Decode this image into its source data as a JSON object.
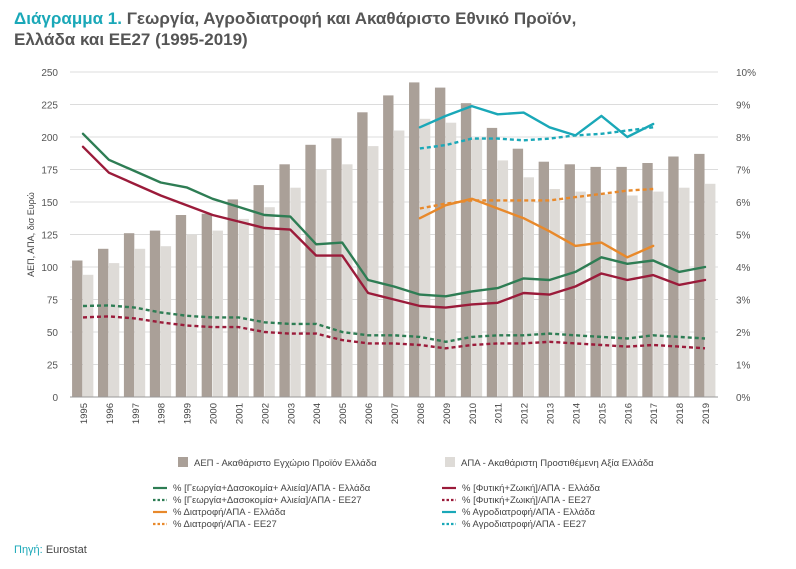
{
  "title_lead": "Διάγραμμα 1.",
  "title_line1": "Γεωργία, Αγροδιατροφή και Ακαθάριστο Εθνικό Προϊόν,",
  "title_line2": "Ελλάδα και ΕΕ27 (1995-2019)",
  "source_label": "Πηγή:",
  "source_value": "Eurostat",
  "colors": {
    "bar_gdp": "#aaa098",
    "bar_gva": "#dedbd7",
    "green": "#2e7d54",
    "crimson": "#9b1b3a",
    "orange": "#e8892b",
    "teal": "#1aa8b8",
    "grid": "#dcdcdc"
  },
  "chart_data": {
    "type": "bar",
    "years": [
      "1995",
      "1996",
      "1997",
      "1998",
      "1999",
      "2000",
      "2001",
      "2002",
      "2003",
      "2004",
      "2005",
      "2006",
      "2007",
      "2008",
      "2009",
      "2010",
      "2011",
      "2012",
      "2013",
      "2014",
      "2015",
      "2016",
      "2017",
      "2018",
      "2019"
    ],
    "ylabel": "ΑΕΠ, ΑΠΑ, δισ Ευρώ",
    "ylim": [
      0,
      250
    ],
    "y_ticks": [
      "0",
      "25",
      "50",
      "75",
      "100",
      "125",
      "150",
      "175",
      "200",
      "225",
      "250"
    ],
    "y2lim": [
      0,
      10
    ],
    "y2_ticks": [
      "0%",
      "1%",
      "2%",
      "3%",
      "4%",
      "5%",
      "6%",
      "7%",
      "8%",
      "9%",
      "10%"
    ],
    "bar_series": [
      {
        "name": "ΑΕΠ - Ακαθάριστο Εγχώριο Προϊόν Ελλάδα",
        "color": "#aaa098",
        "values": [
          105,
          114,
          126,
          128,
          140,
          141,
          152,
          163,
          179,
          194,
          199,
          219,
          232,
          242,
          238,
          226,
          207,
          191,
          181,
          179,
          177,
          177,
          180,
          185,
          187
        ]
      },
      {
        "name": "ΑΠΑ - Ακαθάριστη Προστιθέμενη Αξία Ελλάδα",
        "color": "#dedbd7",
        "values": [
          94,
          103,
          114,
          116,
          125,
          128,
          137,
          146,
          161,
          175,
          179,
          193,
          205,
          214,
          211,
          199,
          182,
          169,
          160,
          158,
          156,
          155,
          158,
          161,
          164
        ]
      }
    ],
    "line_series": [
      {
        "name": "% [Γεωργία+Δασοκομία+ Αλιεία]/ΑΠΑ - Ελλάδα",
        "color": "#2e7d54",
        "dash": false,
        "values": [
          8.1,
          7.3,
          6.95,
          6.6,
          6.45,
          6.1,
          5.85,
          5.6,
          5.55,
          4.7,
          4.75,
          3.6,
          3.4,
          3.15,
          3.1,
          3.25,
          3.35,
          3.65,
          3.6,
          3.85,
          4.3,
          4.1,
          4.2,
          3.85,
          4.0
        ]
      },
      {
        "name": "% [Γεωργία+Δασοκομία+ Αλιεία]/ΑΠΑ - ΕΕ27",
        "color": "#2e7d54",
        "dash": true,
        "values": [
          2.8,
          2.82,
          2.75,
          2.6,
          2.5,
          2.45,
          2.45,
          2.3,
          2.25,
          2.25,
          2.0,
          1.9,
          1.9,
          1.85,
          1.7,
          1.85,
          1.9,
          1.9,
          1.95,
          1.9,
          1.85,
          1.8,
          1.9,
          1.85,
          1.8
        ]
      },
      {
        "name": "% [Φυτική+Ζωική]/ΑΠΑ - Ελλάδα",
        "color": "#9b1b3a",
        "dash": false,
        "values": [
          7.7,
          6.9,
          6.55,
          6.2,
          5.9,
          5.6,
          5.4,
          5.2,
          5.15,
          4.35,
          4.35,
          3.2,
          3.0,
          2.8,
          2.75,
          2.85,
          2.9,
          3.2,
          3.15,
          3.4,
          3.8,
          3.6,
          3.75,
          3.45,
          3.6
        ]
      },
      {
        "name": "% [Φυτική+Ζωική]/ΑΠΑ - ΕΕ27",
        "color": "#9b1b3a",
        "dash": true,
        "values": [
          2.45,
          2.48,
          2.42,
          2.3,
          2.2,
          2.15,
          2.15,
          2.0,
          1.95,
          1.95,
          1.75,
          1.65,
          1.65,
          1.6,
          1.5,
          1.6,
          1.65,
          1.65,
          1.7,
          1.65,
          1.6,
          1.55,
          1.6,
          1.55,
          1.5
        ]
      },
      {
        "name": "% Διατροφή/ΑΠΑ - Ελλάδα",
        "color": "#e8892b",
        "dash": false,
        "values": [
          null,
          null,
          null,
          null,
          null,
          null,
          null,
          null,
          null,
          null,
          null,
          null,
          null,
          5.5,
          5.9,
          6.1,
          5.8,
          5.5,
          5.1,
          4.65,
          4.75,
          4.3,
          4.65,
          null,
          null
        ]
      },
      {
        "name": "% Διατροφή/ΑΠΑ - ΕΕ27",
        "color": "#e8892b",
        "dash": true,
        "values": [
          null,
          null,
          null,
          null,
          null,
          null,
          null,
          null,
          null,
          null,
          null,
          null,
          null,
          5.8,
          5.95,
          6.05,
          6.05,
          6.05,
          6.05,
          6.15,
          6.25,
          6.35,
          6.4,
          null,
          null
        ]
      },
      {
        "name": "% Αγροδιατροφή/ΑΠΑ - Ελλάδα",
        "color": "#1aa8b8",
        "dash": false,
        "values": [
          null,
          null,
          null,
          null,
          null,
          null,
          null,
          null,
          null,
          null,
          null,
          null,
          null,
          8.3,
          8.65,
          8.95,
          8.7,
          8.75,
          8.3,
          8.05,
          8.65,
          8.0,
          8.4,
          null,
          null
        ]
      },
      {
        "name": "% Αγροδιατροφή/ΑΠΑ - ΕΕ27",
        "color": "#1aa8b8",
        "dash": true,
        "values": [
          null,
          null,
          null,
          null,
          null,
          null,
          null,
          null,
          null,
          null,
          null,
          null,
          null,
          7.65,
          7.75,
          7.95,
          7.95,
          7.9,
          7.95,
          8.05,
          8.1,
          8.2,
          8.3,
          null,
          null
        ]
      }
    ],
    "legend_placement": "bottom",
    "grid": true
  }
}
